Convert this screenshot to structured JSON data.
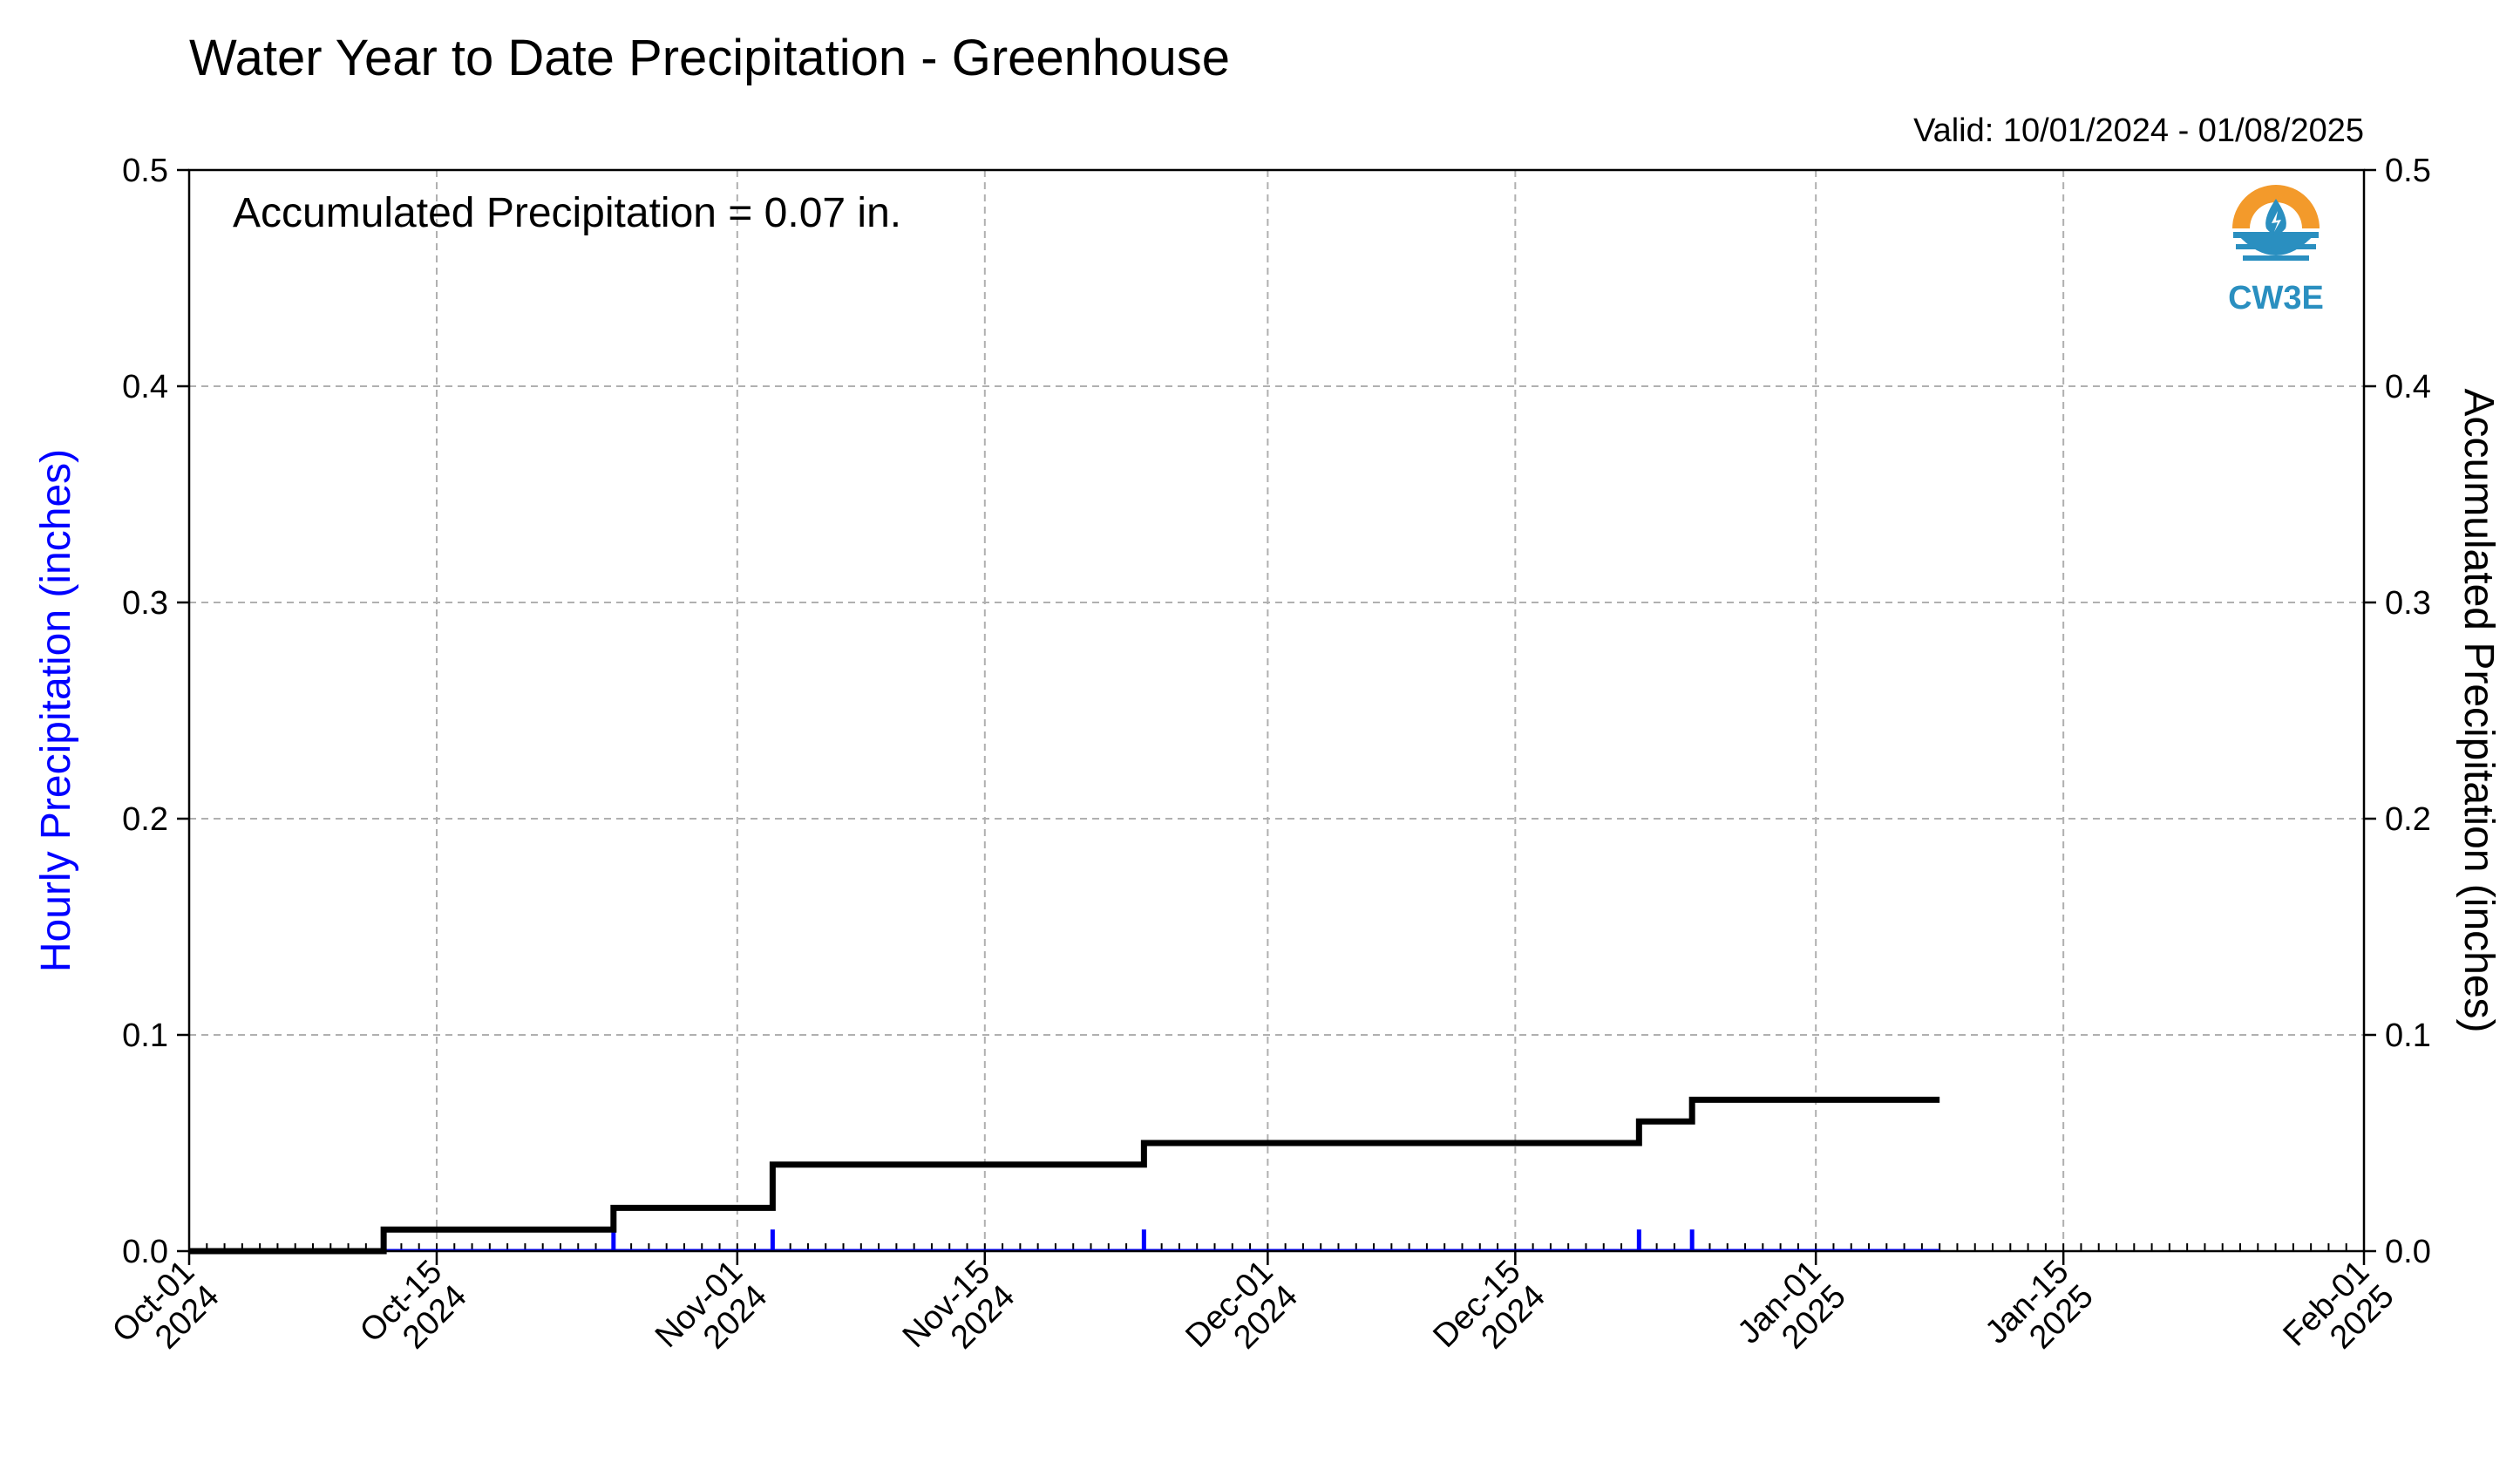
{
  "title": "Water Year to Date Precipitation - Greenhouse",
  "valid_label": "Valid: 10/01/2024 - 01/08/2025",
  "annotation": "Accumulated Precipitation = 0.07 in.",
  "logo": {
    "icon": "cw3e-water-drop-logo",
    "text": "CW3E"
  },
  "colors": {
    "hourly": "#0000ff",
    "accumulated": "#000000",
    "grid": "#b0b0b0",
    "logo_orange": "#f39a2b",
    "logo_blue": "#2a8fc0"
  },
  "chart_data": {
    "type": "line",
    "title": "Water Year to Date Precipitation - Greenhouse",
    "xlabel": "",
    "ylabel_left": "Hourly Precipitation (inches)",
    "ylabel_right": "Accumulated Precipitation (inches)",
    "xlim": [
      "2024-10-01",
      "2025-02-01"
    ],
    "ylim": [
      0,
      0.5
    ],
    "yticks": [
      "0.0",
      "0.1",
      "0.2",
      "0.3",
      "0.4",
      "0.5"
    ],
    "xticks": [
      {
        "date": "2024-10-01",
        "line1": "Oct-01",
        "line2": "2024"
      },
      {
        "date": "2024-10-15",
        "line1": "Oct-15",
        "line2": "2024"
      },
      {
        "date": "2024-11-01",
        "line1": "Nov-01",
        "line2": "2024"
      },
      {
        "date": "2024-11-15",
        "line1": "Nov-15",
        "line2": "2024"
      },
      {
        "date": "2024-12-01",
        "line1": "Dec-01",
        "line2": "2024"
      },
      {
        "date": "2024-12-15",
        "line1": "Dec-15",
        "line2": "2024"
      },
      {
        "date": "2025-01-01",
        "line1": "Jan-01",
        "line2": "2025"
      },
      {
        "date": "2025-01-15",
        "line1": "Jan-15",
        "line2": "2025"
      },
      {
        "date": "2025-02-01",
        "line1": "Feb-01",
        "line2": "2025"
      }
    ],
    "grid": true,
    "series": [
      {
        "name": "Hourly Precipitation (inches)",
        "type": "bar",
        "axis": "left",
        "color": "#0000ff",
        "points": [
          {
            "x": "2024-10-12",
            "y": 0.01
          },
          {
            "x": "2024-10-25",
            "y": 0.01
          },
          {
            "x": "2024-11-03",
            "y": 0.01
          },
          {
            "x": "2024-11-24",
            "y": 0.01
          },
          {
            "x": "2024-12-22",
            "y": 0.01
          },
          {
            "x": "2024-12-25",
            "y": 0.01
          }
        ]
      },
      {
        "name": "Accumulated Precipitation (inches)",
        "type": "step",
        "axis": "right",
        "color": "#000000",
        "points": [
          {
            "x": "2024-10-01",
            "y": 0.0
          },
          {
            "x": "2024-10-12",
            "y": 0.01
          },
          {
            "x": "2024-10-25",
            "y": 0.02
          },
          {
            "x": "2024-11-03",
            "y": 0.04
          },
          {
            "x": "2024-11-24",
            "y": 0.05
          },
          {
            "x": "2024-12-22",
            "y": 0.06
          },
          {
            "x": "2024-12-25",
            "y": 0.07
          },
          {
            "x": "2025-01-08",
            "y": 0.07
          }
        ]
      }
    ]
  }
}
